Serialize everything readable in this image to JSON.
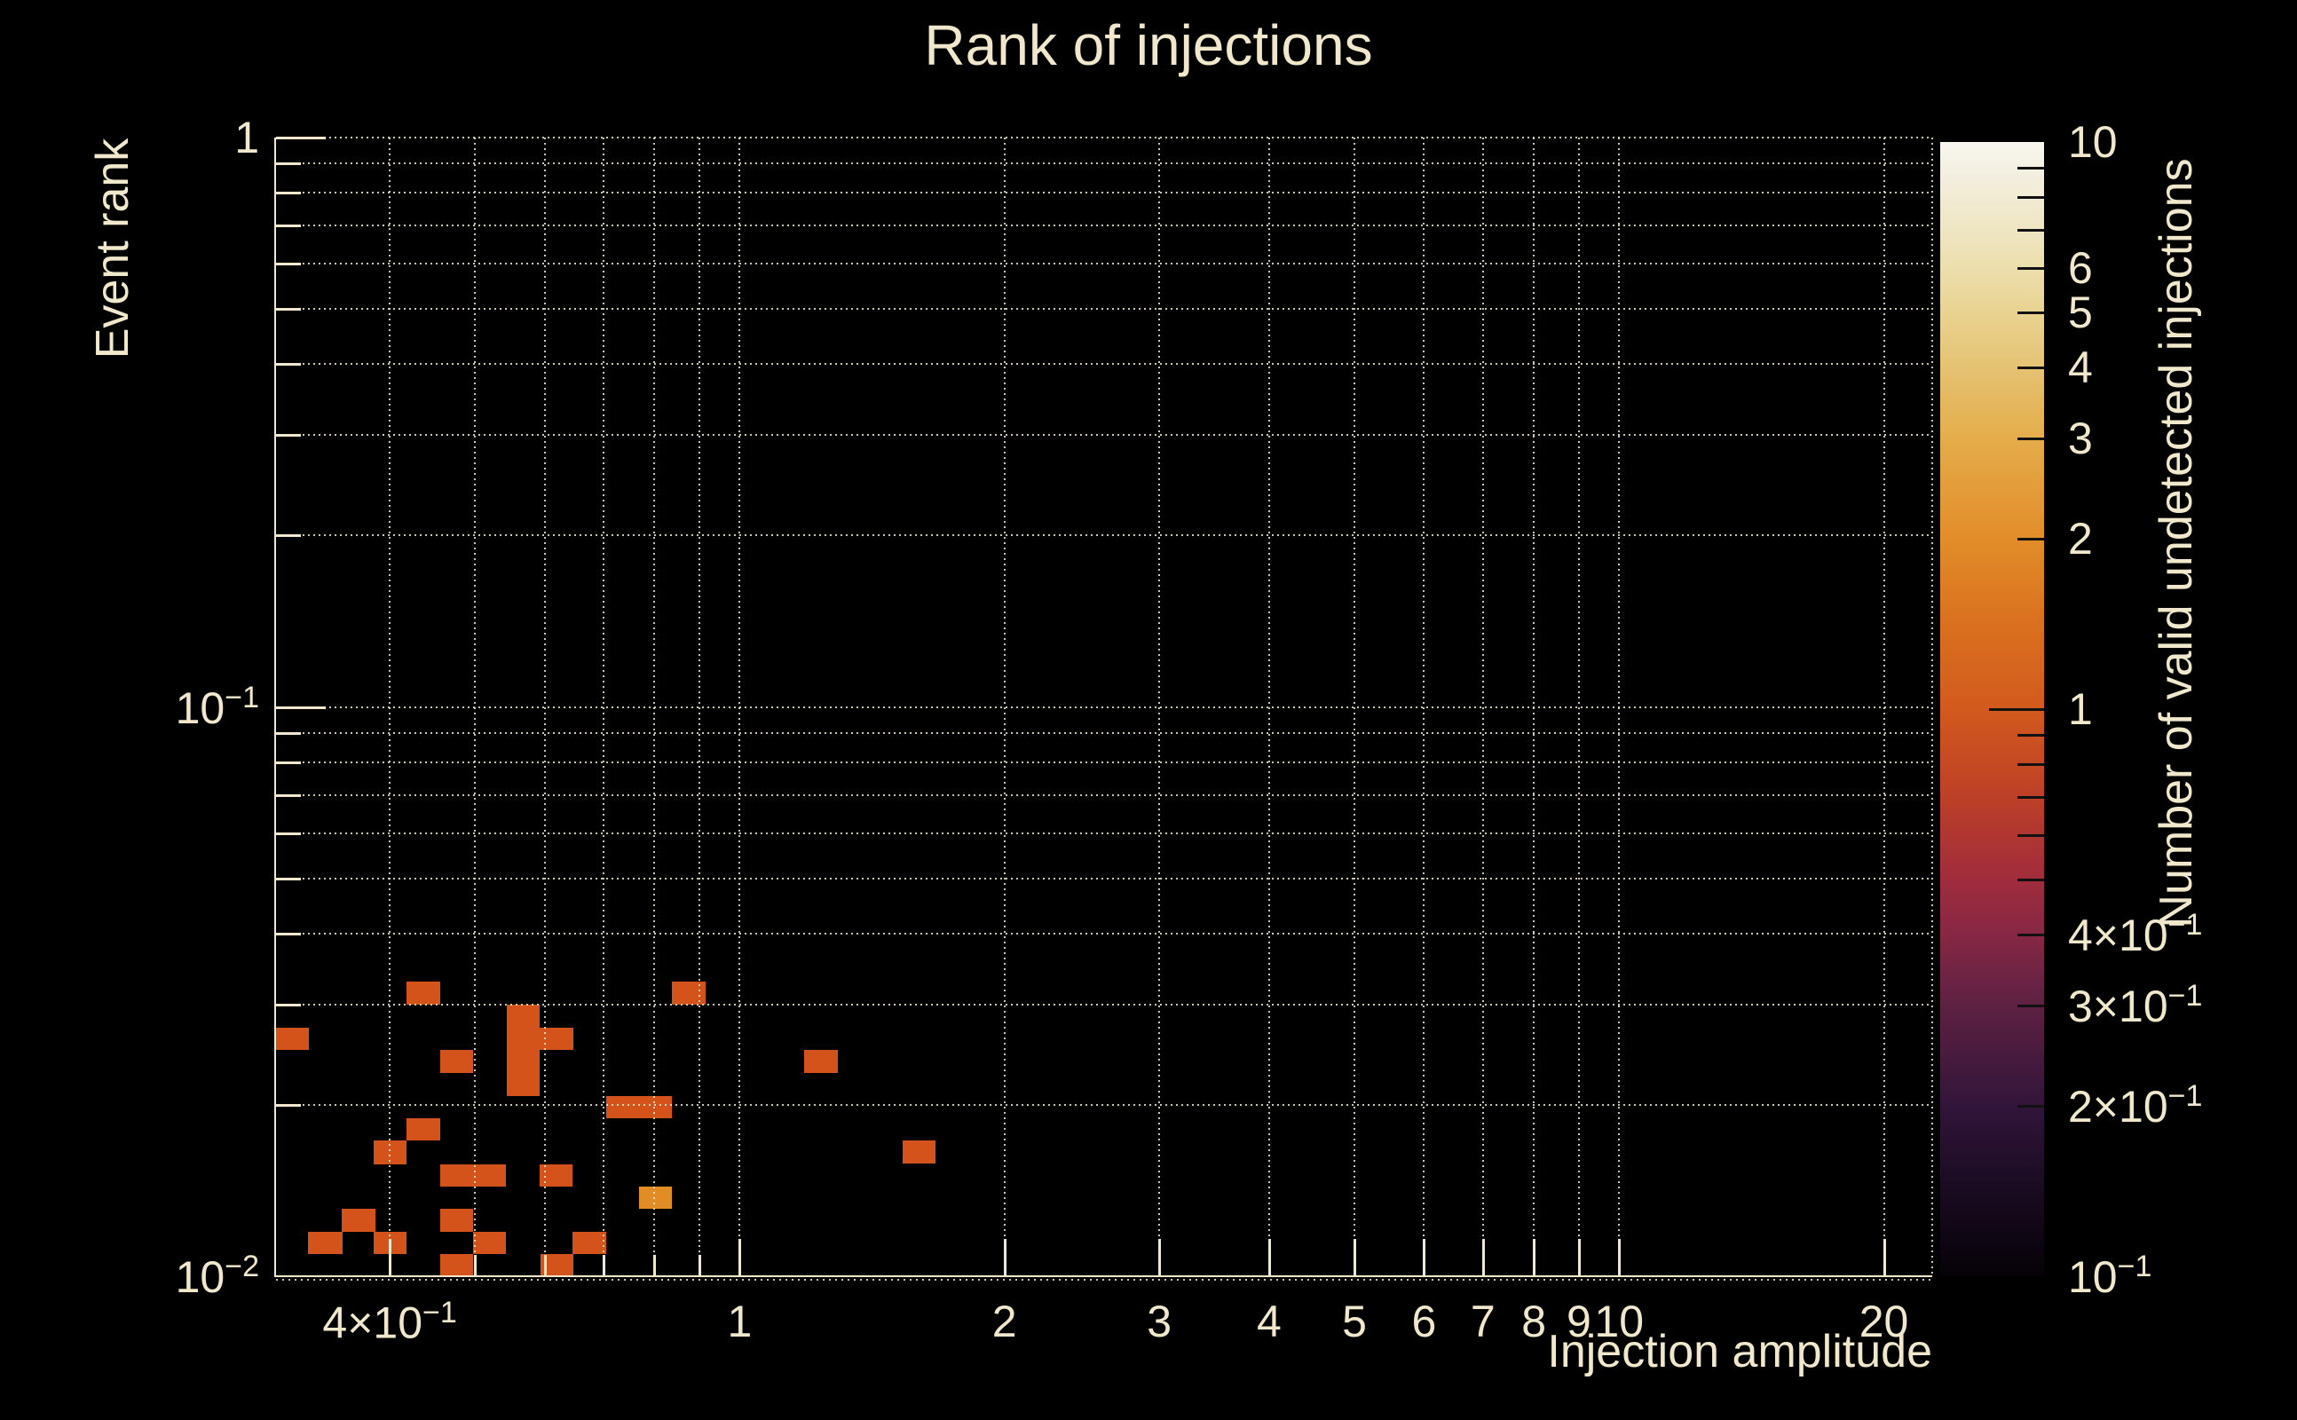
{
  "title": "Rank of injections",
  "colors": {
    "background": "#000000",
    "text": "#f1e8cb",
    "grid": "#f1e8cb",
    "count_1_cell": "#d4531b",
    "count_2_cell": "#e18c25",
    "colorbar_tick": "#111111"
  },
  "chart_data": {
    "type": "heatmap",
    "title": "Rank of injections",
    "xlabel": "Injection amplitude",
    "ylabel": "Event rank",
    "colorbar_label": "Number of valid undetected injections",
    "x_scale": "log",
    "y_scale": "log",
    "z_scale": "log",
    "xlim": [
      0.297,
      22.7
    ],
    "ylim": [
      0.01,
      1
    ],
    "zlim": [
      0.1,
      10
    ],
    "grid": {
      "x": [
        0.4,
        0.5,
        0.6,
        0.7,
        0.8,
        0.9,
        1,
        2,
        3,
        4,
        5,
        6,
        7,
        8,
        9,
        10,
        20
      ],
      "y": [
        1,
        0.9,
        0.8,
        0.7,
        0.6,
        0.5,
        0.4,
        0.3,
        0.2,
        0.1,
        0.09,
        0.08,
        0.07,
        0.06,
        0.05,
        0.04,
        0.03,
        0.02
      ],
      "right_edge": true
    },
    "x_ticks": [
      {
        "v": 0.4,
        "label": "4×10^−1"
      },
      {
        "v": 1,
        "label": "1"
      },
      {
        "v": 2,
        "label": "2"
      },
      {
        "v": 3,
        "label": "3"
      },
      {
        "v": 4,
        "label": "4"
      },
      {
        "v": 5,
        "label": "5"
      },
      {
        "v": 6,
        "label": "6"
      },
      {
        "v": 7,
        "label": "7"
      },
      {
        "v": 8,
        "label": "8"
      },
      {
        "v": 9,
        "label": "9"
      },
      {
        "v": 10,
        "label": "10"
      },
      {
        "v": 20,
        "label": "20"
      }
    ],
    "x_minor_ticks": [
      0.5,
      0.6,
      0.7,
      0.8,
      0.9
    ],
    "y_ticks": [
      {
        "v": 1,
        "label": "1"
      },
      {
        "v": 0.1,
        "label": "10^−1"
      },
      {
        "v": 0.01,
        "label": "10^−2"
      }
    ],
    "y_minor_ticks": [
      0.9,
      0.8,
      0.7,
      0.6,
      0.5,
      0.4,
      0.3,
      0.2,
      0.09,
      0.08,
      0.07,
      0.06,
      0.05,
      0.04,
      0.03,
      0.02
    ],
    "colorbar_ticks": [
      {
        "v": 10,
        "label": "10"
      },
      {
        "v": 6,
        "label": "6"
      },
      {
        "v": 5,
        "label": "5"
      },
      {
        "v": 4,
        "label": "4"
      },
      {
        "v": 3,
        "label": "3"
      },
      {
        "v": 2,
        "label": "2"
      },
      {
        "v": 1,
        "label": "1"
      },
      {
        "v": 0.4,
        "label": "4×10^−1"
      },
      {
        "v": 0.3,
        "label": "3×10^−1"
      },
      {
        "v": 0.2,
        "label": "2×10^−1"
      },
      {
        "v": 0.1,
        "label": "10^−1"
      }
    ],
    "colorbar_minor_ticks": [
      9,
      8,
      7,
      6,
      5,
      4,
      3,
      2,
      0.9,
      0.8,
      0.7,
      0.6,
      0.5,
      0.4,
      0.3,
      0.2
    ],
    "cells": [
      {
        "x": 0.44,
        "y": 0.0315,
        "count": 1,
        "px": [
          458,
          1106,
          38,
          26
        ]
      },
      {
        "x": 0.31,
        "y": 0.0261,
        "count": 1,
        "px": [
          311,
          1158,
          37,
          25
        ]
      },
      {
        "x": 0.57,
        "y": 0.0249,
        "count": 1,
        "px": [
          571,
          1132,
          37,
          103
        ]
      },
      {
        "x": 0.62,
        "y": 0.0261,
        "count": 1,
        "px": [
          608,
          1158,
          38,
          25
        ]
      },
      {
        "x": 0.48,
        "y": 0.0238,
        "count": 1,
        "px": [
          496,
          1183,
          37,
          26
        ]
      },
      {
        "x": 0.77,
        "y": 0.0199,
        "count": 1,
        "px": [
          683,
          1235,
          74,
          25
        ]
      },
      {
        "x": 0.44,
        "y": 0.0181,
        "count": 1,
        "px": [
          458,
          1260,
          38,
          25
        ]
      },
      {
        "x": 0.4,
        "y": 0.0165,
        "count": 1,
        "px": [
          421,
          1285,
          37,
          27
        ]
      },
      {
        "x": 0.5,
        "y": 0.015,
        "count": 1,
        "px": [
          496,
          1312,
          74,
          25
        ]
      },
      {
        "x": 0.62,
        "y": 0.015,
        "count": 1,
        "px": [
          608,
          1312,
          37,
          25
        ]
      },
      {
        "x": 0.8,
        "y": 0.0137,
        "count": 2,
        "px": [
          720,
          1337,
          37,
          25
        ]
      },
      {
        "x": 0.37,
        "y": 0.0125,
        "count": 1,
        "px": [
          385,
          1362,
          38,
          26
        ]
      },
      {
        "x": 0.34,
        "y": 0.0114,
        "count": 1,
        "px": [
          347,
          1388,
          39,
          25
        ]
      },
      {
        "x": 0.4,
        "y": 0.0114,
        "count": 1,
        "px": [
          421,
          1388,
          37,
          25
        ]
      },
      {
        "x": 0.48,
        "y": 0.0125,
        "count": 1,
        "px": [
          496,
          1362,
          37,
          26
        ]
      },
      {
        "x": 0.48,
        "y": 0.0105,
        "count": 1,
        "px": [
          496,
          1413,
          37,
          25
        ]
      },
      {
        "x": 0.52,
        "y": 0.0114,
        "count": 1,
        "px": [
          533,
          1388,
          37,
          25
        ]
      },
      {
        "x": 0.62,
        "y": 0.0105,
        "count": 1,
        "px": [
          609,
          1413,
          37,
          25
        ]
      },
      {
        "x": 0.67,
        "y": 0.0114,
        "count": 1,
        "px": [
          645,
          1388,
          38,
          25
        ]
      },
      {
        "x": 0.88,
        "y": 0.0315,
        "count": 1,
        "px": [
          757,
          1106,
          38,
          26
        ]
      },
      {
        "x": 1.24,
        "y": 0.0238,
        "count": 1,
        "px": [
          906,
          1183,
          38,
          26
        ]
      },
      {
        "x": 1.6,
        "y": 0.0165,
        "count": 1,
        "px": [
          1017,
          1285,
          37,
          26
        ]
      }
    ]
  }
}
